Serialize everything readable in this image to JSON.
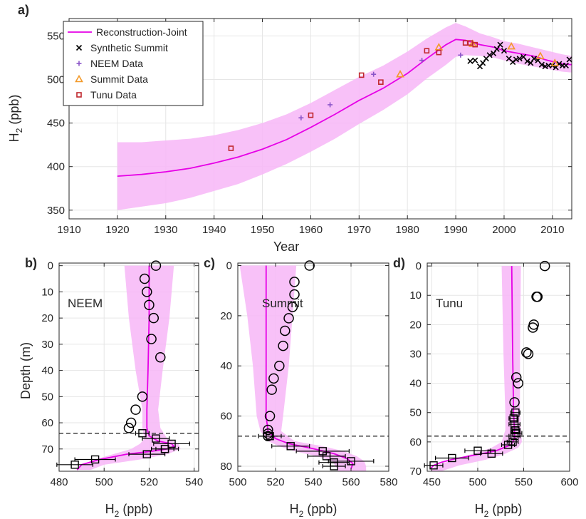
{
  "colors": {
    "recon_line": "#e600e6",
    "recon_band": "#f7b6f7",
    "neem": "#8a55c8",
    "summit": "#f39a2a",
    "tunu": "#c0272d",
    "synthetic": "#000000",
    "grid": "#e6e6e6",
    "dashed": "#3d3d3d"
  },
  "chart_data": [
    {
      "panel": "a)",
      "type": "line",
      "xlabel": "Year",
      "ylabel_main": "H",
      "ylabel_sub": "2",
      "ylabel_unit": " (ppb)",
      "xlim": [
        1910,
        2014
      ],
      "ylim": [
        340,
        570
      ],
      "xticks": [
        1910,
        1920,
        1930,
        1940,
        1950,
        1960,
        1970,
        1980,
        1990,
        2000,
        2010
      ],
      "yticks": [
        350,
        400,
        450,
        500,
        550
      ],
      "grid": true,
      "legend_position": "top-left",
      "legend": [
        "Reconstruction-Joint",
        "Synthetic Summit",
        "NEEM Data",
        "Summit Data",
        "Tunu Data"
      ],
      "series": [
        {
          "name": "Reconstruction-Joint",
          "kind": "line_with_band",
          "x": [
            1920,
            1925,
            1930,
            1935,
            1940,
            1945,
            1950,
            1955,
            1960,
            1965,
            1970,
            1975,
            1980,
            1984,
            1988,
            1990,
            1992,
            1995,
            1998,
            2000,
            2003,
            2006,
            2009,
            2012,
            2014
          ],
          "y": [
            389,
            391,
            394,
            398,
            404,
            411,
            420,
            431,
            445,
            460,
            476,
            490,
            507,
            524,
            540,
            546,
            545,
            540,
            537,
            533,
            530,
            527,
            522,
            518,
            517
          ],
          "lower": [
            350,
            354,
            358,
            364,
            372,
            380,
            391,
            403,
            417,
            432,
            449,
            465,
            483,
            501,
            517,
            526,
            528,
            527,
            525,
            522,
            518,
            515,
            512,
            509,
            508
          ],
          "upper": [
            428,
            428,
            430,
            432,
            436,
            442,
            450,
            460,
            473,
            488,
            503,
            516,
            532,
            547,
            560,
            565,
            561,
            553,
            548,
            544,
            541,
            537,
            533,
            529,
            527
          ]
        },
        {
          "name": "Synthetic Summit",
          "marker": "x",
          "x": [
            1993,
            1994,
            1995,
            1995.6,
            1996.3,
            1997,
            1997.8,
            1998.5,
            1999.2,
            2000,
            2001,
            2001.8,
            2002.5,
            2003.2,
            2004,
            2004.8,
            2005.5,
            2006.2,
            2007,
            2007.8,
            2008.5,
            2009.2,
            2010,
            2010.7,
            2011.4,
            2012.1,
            2012.8,
            2013.5
          ],
          "y": [
            521,
            522,
            515,
            519,
            524,
            528,
            530,
            535,
            540,
            533,
            524,
            520,
            523,
            524,
            526,
            521,
            519,
            524,
            522,
            517,
            515,
            516,
            516,
            514,
            518,
            516,
            516,
            523
          ]
        },
        {
          "name": "NEEM Data",
          "marker": "plus",
          "x": [
            1958,
            1964,
            1973,
            1983,
            1991
          ],
          "y": [
            456,
            471,
            506,
            522,
            528
          ]
        },
        {
          "name": "Summit Data",
          "marker": "triangle",
          "x": [
            1978.5,
            1986.5,
            1993.5,
            2001.5,
            2007.5,
            2010.5
          ],
          "y": [
            506,
            537,
            541,
            538,
            527,
            519
          ]
        },
        {
          "name": "Tunu Data",
          "marker": "square",
          "x": [
            1943.5,
            1960,
            1970.5,
            1974.5,
            1984,
            1986.5,
            1992,
            1993,
            1994
          ],
          "y": [
            421,
            459,
            505,
            497,
            533,
            531,
            542,
            542,
            540
          ]
        }
      ]
    },
    {
      "panel": "b)",
      "site": "NEEM",
      "type": "scatter",
      "xlabel_main": "H",
      "xlabel_sub": "2",
      "xlabel_unit": " (ppb)",
      "ylabel": "Depth (m)",
      "xlim": [
        480,
        542
      ],
      "ylim": [
        78.5,
        -1
      ],
      "xticks": [
        480,
        500,
        520,
        540
      ],
      "yticks": [
        0,
        10,
        20,
        30,
        40,
        50,
        60,
        70
      ],
      "grid": true,
      "dashed_depth": 64,
      "band": {
        "depth": [
          0,
          20,
          40,
          55,
          62,
          66,
          68,
          70,
          72,
          74,
          76,
          78
        ],
        "left": [
          509,
          511,
          514,
          517,
          517,
          518,
          516,
          512,
          504,
          496,
          490,
          488
        ],
        "right": [
          531,
          529,
          526,
          524,
          525,
          528,
          533,
          534,
          528,
          516,
          500,
          494
        ]
      },
      "line": {
        "depth": [
          0,
          20,
          40,
          55,
          62,
          65,
          67,
          68,
          69,
          70,
          71,
          72,
          74,
          76,
          78
        ],
        "x": [
          520,
          520,
          519.5,
          519,
          519,
          520,
          524,
          530,
          531,
          528,
          520,
          510,
          498,
          490,
          488
        ]
      },
      "circles": {
        "x": [
          523,
          518,
          519,
          520,
          522,
          521,
          525,
          517,
          514,
          512,
          511
        ],
        "depth": [
          0,
          5,
          10,
          15,
          20,
          28,
          35,
          50,
          55,
          60,
          62
        ]
      },
      "squares": {
        "x": [
          517,
          523,
          530,
          527,
          519,
          527,
          496,
          487
        ],
        "depth": [
          64,
          66,
          68,
          70,
          72,
          70,
          74,
          76
        ],
        "err": [
          3,
          6,
          8,
          6,
          8,
          4,
          9,
          8
        ]
      }
    },
    {
      "panel": "c)",
      "site": "Summit",
      "type": "scatter",
      "xlabel_main": "H",
      "xlabel_sub": "2",
      "xlabel_unit": " (ppb)",
      "xlim": [
        500,
        580
      ],
      "ylim": [
        82,
        -1
      ],
      "xticks": [
        500,
        520,
        540,
        560,
        580
      ],
      "yticks": [
        0,
        20,
        40,
        60,
        80
      ],
      "grid": true,
      "dashed_depth": 68,
      "band": {
        "depth": [
          0,
          20,
          40,
          60,
          66,
          70,
          72,
          74,
          76,
          78,
          80,
          82
        ],
        "left": [
          501,
          505,
          508,
          510,
          512,
          516,
          522,
          530,
          542,
          550,
          552,
          553
        ],
        "right": [
          531,
          529,
          527,
          524,
          523,
          530,
          545,
          556,
          563,
          567,
          568,
          568
        ]
      },
      "line": {
        "depth": [
          0,
          20,
          40,
          60,
          66,
          69,
          71,
          73,
          75,
          77,
          79,
          81
        ],
        "x": [
          515,
          515,
          515,
          515,
          516,
          520,
          527,
          540,
          551,
          558,
          561,
          560
        ]
      },
      "circles": {
        "x": [
          538,
          530,
          530,
          529,
          527,
          525,
          524,
          522,
          519,
          518,
          517,
          516,
          516,
          516
        ],
        "depth": [
          0,
          6.5,
          11.5,
          16.5,
          21,
          26,
          32,
          40,
          45,
          49.5,
          60,
          65.5,
          68,
          67
        ]
      },
      "squares": {
        "x": [
          517,
          528,
          545,
          547,
          560,
          551,
          551
        ],
        "depth": [
          68,
          72,
          74,
          76,
          78,
          78.5,
          80
        ],
        "err": [
          6,
          10,
          14,
          10,
          12,
          8,
          6
        ]
      }
    },
    {
      "panel": "d)",
      "site": "Tunu",
      "type": "scatter",
      "xlabel_main": "H",
      "xlabel_sub": "2",
      "xlabel_unit": " (ppb)",
      "xlim": [
        445,
        600
      ],
      "ylim": [
        70,
        -1
      ],
      "xticks": [
        450,
        500,
        550,
        600
      ],
      "yticks": [
        0,
        10,
        20,
        30,
        40,
        50,
        60,
        70
      ],
      "grid": true,
      "dashed_depth": 58,
      "band": {
        "depth": [
          0,
          30,
          50,
          56,
          60,
          62,
          64,
          66,
          68,
          70
        ],
        "left": [
          526,
          528,
          530,
          530,
          526,
          515,
          495,
          475,
          455,
          448
        ],
        "right": [
          547,
          546,
          546,
          547,
          548,
          544,
          530,
          510,
          480,
          460
        ]
      },
      "line": {
        "depth": [
          0,
          30,
          50,
          56,
          59,
          61,
          63,
          64,
          65,
          66,
          67,
          68,
          69
        ],
        "x": [
          537,
          538,
          539,
          540,
          540,
          536,
          520,
          505,
          488,
          472,
          460,
          452,
          449
        ]
      },
      "circles": {
        "x": [
          573,
          564,
          565,
          561,
          560,
          553,
          555,
          542,
          544,
          540
        ],
        "depth": [
          0,
          10.5,
          10.5,
          20,
          21,
          29.5,
          30,
          38,
          40,
          46.5
        ]
      },
      "squares": {
        "x": [
          541,
          539,
          540,
          541,
          542,
          540,
          538,
          533,
          500,
          515,
          472,
          452
        ],
        "depth": [
          50,
          52,
          54,
          56,
          57,
          58,
          60,
          61,
          63,
          64,
          65.5,
          68
        ],
        "err": [
          5,
          5,
          6,
          5,
          6,
          6,
          6,
          7,
          14,
          12,
          18,
          10
        ]
      }
    }
  ]
}
